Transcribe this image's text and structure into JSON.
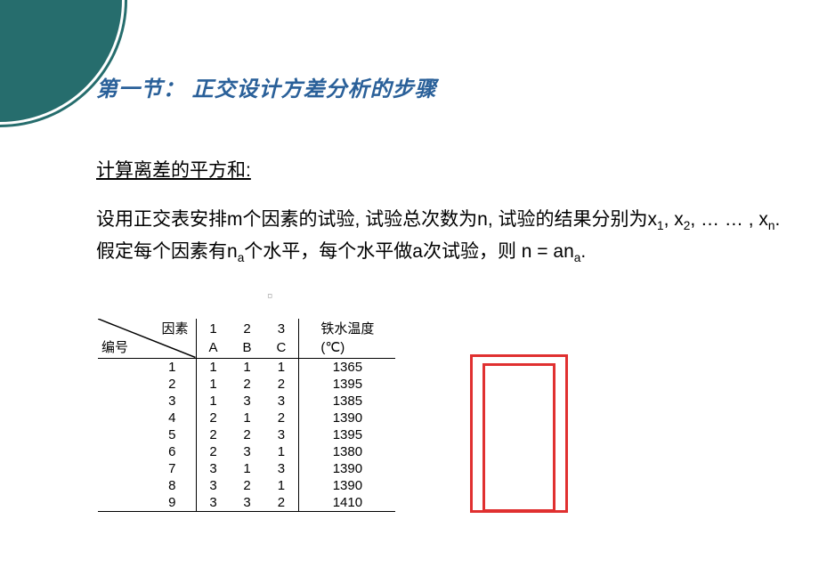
{
  "decor": {
    "arc_color": "#266d6d"
  },
  "title": "第一节： 正交设计方差分析的步骤",
  "subtitle": "计算离差的平方和:",
  "body": {
    "p1_a": "设用正交表安排m个因素的试验, 试验总次数为n, 试验的结果分别为x",
    "p1_sub1": "1",
    "p1_b": ", x",
    "p1_sub2": "2",
    "p1_c": ", … … , x",
    "p1_sub3": "n",
    "p1_d": ". 假定每个因素有n",
    "p1_sub4": "a",
    "p1_e": "个水平，每个水平做a次试验，则 n = an",
    "p1_sub5": "a",
    "p1_f": "."
  },
  "table": {
    "diag_top": "因素",
    "diag_bot": "编号",
    "header_nums": [
      "1",
      "2",
      "3"
    ],
    "header_letters": [
      "A",
      "B",
      "C"
    ],
    "result_label_1": "铁水温度",
    "result_label_2": "(℃)",
    "rows": [
      {
        "id": "1",
        "a": "1",
        "b": "1",
        "c": "1",
        "r": "1365"
      },
      {
        "id": "2",
        "a": "1",
        "b": "2",
        "c": "2",
        "r": "1395"
      },
      {
        "id": "3",
        "a": "1",
        "b": "3",
        "c": "3",
        "r": "1385"
      },
      {
        "id": "4",
        "a": "2",
        "b": "1",
        "c": "2",
        "r": "1390"
      },
      {
        "id": "5",
        "a": "2",
        "b": "2",
        "c": "3",
        "r": "1395"
      },
      {
        "id": "6",
        "a": "2",
        "b": "3",
        "c": "1",
        "r": "1380"
      },
      {
        "id": "7",
        "a": "3",
        "b": "1",
        "c": "3",
        "r": "1390"
      },
      {
        "id": "8",
        "a": "3",
        "b": "2",
        "c": "1",
        "r": "1390"
      },
      {
        "id": "9",
        "a": "3",
        "b": "3",
        "c": "2",
        "r": "1410"
      }
    ],
    "highlight_color": "#e03030"
  }
}
